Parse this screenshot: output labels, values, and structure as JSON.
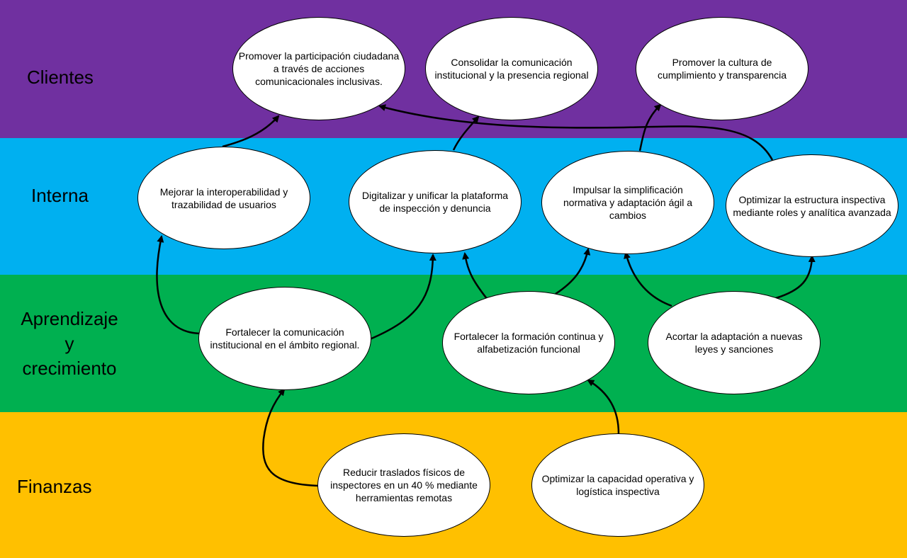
{
  "diagram": {
    "bands": [
      {
        "id": "clientes",
        "label": "Clientes",
        "color": "#7030a0"
      },
      {
        "id": "interna",
        "label": "Interna",
        "color": "#00b0f0"
      },
      {
        "id": "aprendizaje",
        "label": "Aprendizaje\ny\ncrecimiento",
        "color": "#00b050"
      },
      {
        "id": "finanzas",
        "label": "Finanzas",
        "color": "#ffc000"
      }
    ],
    "nodes": {
      "c1": "Promover la participación ciudadana\na través de acciones\ncomunicacionales inclusivas.",
      "c2": "Consolidar la comunicación\ninstitucional y la presencia regional",
      "c3": "Promover la cultura de\ncumplimiento y transparencia",
      "i1": "Mejorar la interoperabilidad y\ntrazabilidad de usuarios",
      "i2": "Digitalizar y unificar la plataforma\nde inspección y denuncia",
      "i3": "Impulsar la simplificación\nnormativa y adaptación ágil a\ncambios",
      "i4": "Optimizar la estructura inspectiva\nmediante roles y analítica avanzada",
      "a1": "Fortalecer la comunicación\ninstitucional en el ámbito regional.",
      "a2": "Fortalecer la formación continua y\nalfabetización funcional",
      "a3": "Acortar la adaptación a nuevas\nleyes y sanciones",
      "f1": "Reducir traslados físicos de\ninspectores en un 40 % mediante\nherramientas remotas",
      "f2": "Optimizar la capacidad operativa y\nlogística inspectiva"
    },
    "links": [
      [
        "i1",
        "c1"
      ],
      [
        "i2",
        "c2"
      ],
      [
        "i3",
        "c3"
      ],
      [
        "i4",
        "c1"
      ],
      [
        "a1",
        "i1"
      ],
      [
        "a1",
        "i2"
      ],
      [
        "a2",
        "i2"
      ],
      [
        "a2",
        "i3"
      ],
      [
        "a3",
        "i3"
      ],
      [
        "a3",
        "i4"
      ],
      [
        "f1",
        "a1"
      ],
      [
        "f2",
        "a2"
      ]
    ]
  }
}
